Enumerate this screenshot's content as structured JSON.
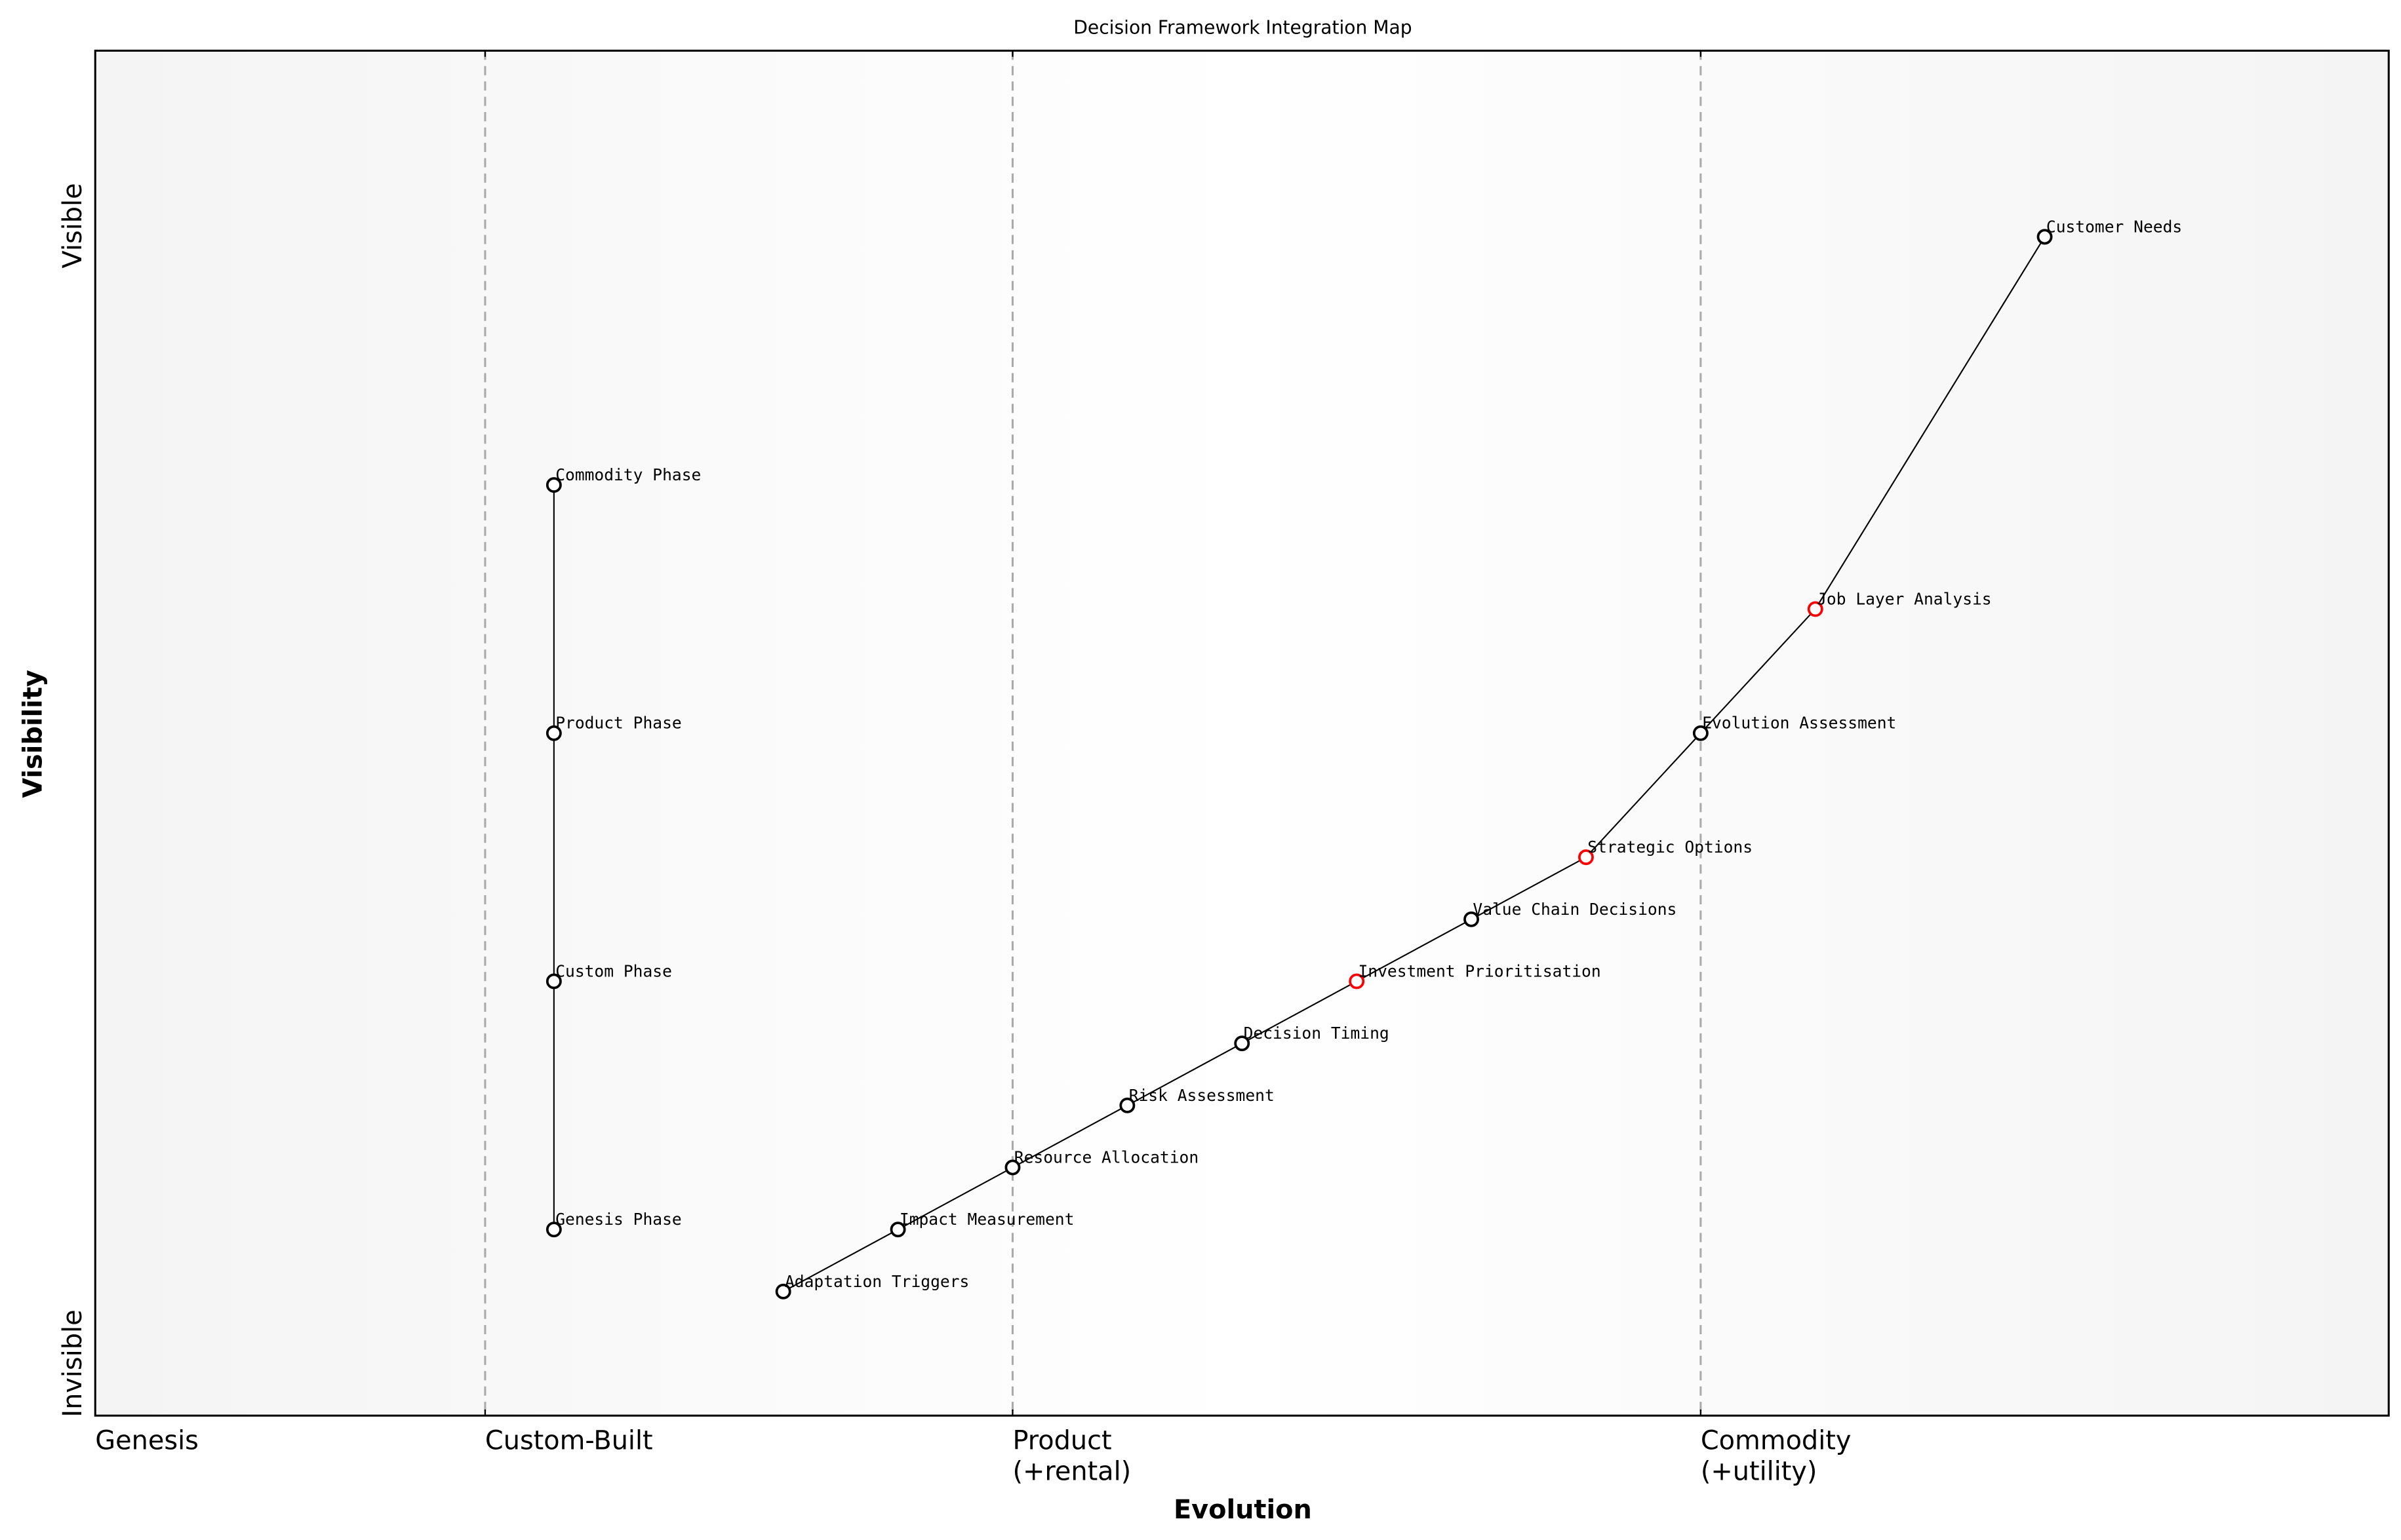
{
  "chart_data": {
    "type": "scatter",
    "title": "Decision Framework Integration Map",
    "xlabel": "Evolution",
    "ylabel": "Visibility",
    "xlim": [
      0,
      1
    ],
    "ylim": [
      0,
      1.1
    ],
    "grid": false,
    "x_ticks": [
      {
        "value": 0.0,
        "label": [
          "Genesis"
        ]
      },
      {
        "value": 0.17,
        "label": [
          "Custom-Built"
        ]
      },
      {
        "value": 0.4,
        "label": [
          "Product",
          "(+rental)"
        ]
      },
      {
        "value": 0.7,
        "label": [
          "Commodity",
          "(+utility)"
        ]
      }
    ],
    "stage_dividers": [
      0.17,
      0.4,
      0.7
    ],
    "y_labels": {
      "top": "Visible",
      "bottom": "Invisible"
    },
    "colors": {
      "default": "#000000",
      "highlight": "#ff0000",
      "divider": "#aaaaaa",
      "band_edge": "#f5f5f5"
    },
    "nodes": [
      {
        "name": "Customer Needs",
        "x": 0.85,
        "y": 0.95,
        "highlight": false
      },
      {
        "name": "Job Layer Analysis",
        "x": 0.75,
        "y": 0.65,
        "highlight": true
      },
      {
        "name": "Evolution Assessment",
        "x": 0.7,
        "y": 0.55,
        "highlight": false
      },
      {
        "name": "Strategic Options",
        "x": 0.65,
        "y": 0.45,
        "highlight": true
      },
      {
        "name": "Value Chain Decisions",
        "x": 0.6,
        "y": 0.4,
        "highlight": false
      },
      {
        "name": "Investment Prioritisation",
        "x": 0.55,
        "y": 0.35,
        "highlight": true
      },
      {
        "name": "Decision Timing",
        "x": 0.5,
        "y": 0.3,
        "highlight": false
      },
      {
        "name": "Risk Assessment",
        "x": 0.45,
        "y": 0.25,
        "highlight": false
      },
      {
        "name": "Resource Allocation",
        "x": 0.4,
        "y": 0.2,
        "highlight": false
      },
      {
        "name": "Impact Measurement",
        "x": 0.35,
        "y": 0.15,
        "highlight": false
      },
      {
        "name": "Adaptation Triggers",
        "x": 0.3,
        "y": 0.1,
        "highlight": false
      },
      {
        "name": "Commodity Phase",
        "x": 0.2,
        "y": 0.75,
        "highlight": false
      },
      {
        "name": "Product Phase",
        "x": 0.2,
        "y": 0.55,
        "highlight": false
      },
      {
        "name": "Custom Phase",
        "x": 0.2,
        "y": 0.35,
        "highlight": false
      },
      {
        "name": "Genesis Phase",
        "x": 0.2,
        "y": 0.15,
        "highlight": false
      }
    ],
    "links": [
      [
        "Customer Needs",
        "Job Layer Analysis"
      ],
      [
        "Job Layer Analysis",
        "Evolution Assessment"
      ],
      [
        "Evolution Assessment",
        "Strategic Options"
      ],
      [
        "Strategic Options",
        "Value Chain Decisions"
      ],
      [
        "Value Chain Decisions",
        "Investment Prioritisation"
      ],
      [
        "Investment Prioritisation",
        "Decision Timing"
      ],
      [
        "Decision Timing",
        "Risk Assessment"
      ],
      [
        "Risk Assessment",
        "Resource Allocation"
      ],
      [
        "Resource Allocation",
        "Impact Measurement"
      ],
      [
        "Impact Measurement",
        "Adaptation Triggers"
      ],
      [
        "Commodity Phase",
        "Product Phase"
      ],
      [
        "Product Phase",
        "Custom Phase"
      ],
      [
        "Custom Phase",
        "Genesis Phase"
      ]
    ]
  }
}
